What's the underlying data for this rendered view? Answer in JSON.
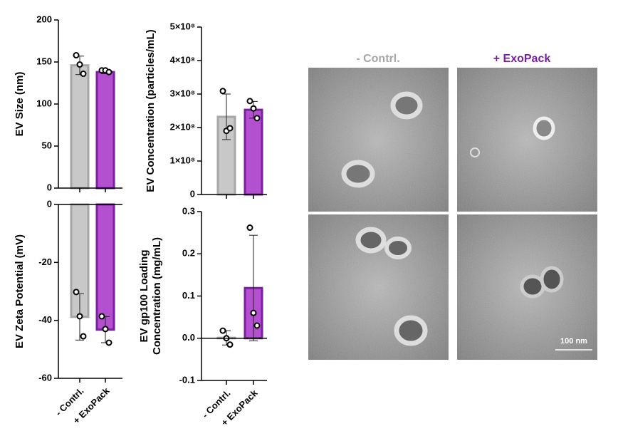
{
  "chart_data": [
    {
      "type": "bar",
      "ylabel": [
        "EV Size (nm)"
      ],
      "values": [
        146,
        138
      ],
      "errors": [
        11,
        2
      ],
      "points": [
        [
          158,
          147,
          136
        ],
        [
          140,
          140,
          138
        ]
      ],
      "colors": [
        "#c8c8c8",
        "#b44fd0"
      ],
      "edge_colors": [
        "#a6a6a6",
        "#7b1fa2"
      ],
      "ylim": [
        0,
        200
      ],
      "yticks": [
        0,
        50,
        100,
        150,
        200
      ]
    },
    {
      "type": "bar",
      "ylabel": [
        "EV Concentration (particles/mL)"
      ],
      "values": [
        232000000,
        253000000
      ],
      "errors": [
        68000000,
        25000000
      ],
      "points": [
        [
          309000000,
          190000000,
          198000000
        ],
        [
          279000000,
          257000000,
          228000000
        ]
      ],
      "colors": [
        "#c8c8c8",
        "#b44fd0"
      ],
      "edge_colors": [
        "#a6a6a6",
        "#7b1fa2"
      ],
      "ylim": [
        0,
        500000000
      ],
      "yticks": [
        0,
        {
          "value": 100000000,
          "label": "1×10⁸"
        },
        {
          "value": 200000000,
          "label": "2×10⁸"
        },
        {
          "value": 300000000,
          "label": "3×10⁸"
        },
        {
          "value": 400000000,
          "label": "4×10⁸"
        },
        {
          "value": 500000000,
          "label": "5×10⁸"
        }
      ]
    },
    {
      "type": "bar",
      "ylabel": [
        "EV Zeta Potential (mV)"
      ],
      "categories": [
        "- Contrl.",
        "+ ExoPack"
      ],
      "values": [
        -38.8,
        -43.2
      ],
      "errors": [
        8,
        4.5
      ],
      "points": [
        [
          -30.2,
          -38.6,
          -45.5
        ],
        [
          -38.6,
          -43,
          -47.7
        ]
      ],
      "colors": [
        "#c8c8c8",
        "#b44fd0"
      ],
      "edge_colors": [
        "#a6a6a6",
        "#7b1fa2"
      ],
      "ylim": [
        -60,
        0
      ],
      "yticks": [
        -60,
        -40,
        -20,
        0
      ]
    },
    {
      "type": "bar",
      "ylabel": [
        "EV gp100 Loading",
        "Concentration (mg/mL)"
      ],
      "categories": [
        "- Contrl.",
        "+ ExoPack"
      ],
      "values": [
        0.001,
        0.119
      ],
      "errors": [
        0.017,
        0.125
      ],
      "points": [
        [
          0.018,
          0.0,
          -0.015
        ],
        [
          0.262,
          0.06,
          0.03
        ]
      ],
      "colors": [
        "#c8c8c8",
        "#b44fd0"
      ],
      "edge_colors": [
        "#a6a6a6",
        "#7b1fa2"
      ],
      "ylim": [
        -0.1,
        0.3
      ],
      "yticks": [
        -0.1,
        {
          "value": 0,
          "label": "0.0"
        },
        0.1,
        0.2,
        0.3
      ]
    }
  ],
  "images": {
    "columns": [
      "- Contrl.",
      "+ ExoPack"
    ],
    "scale_bar": "100 nm"
  }
}
